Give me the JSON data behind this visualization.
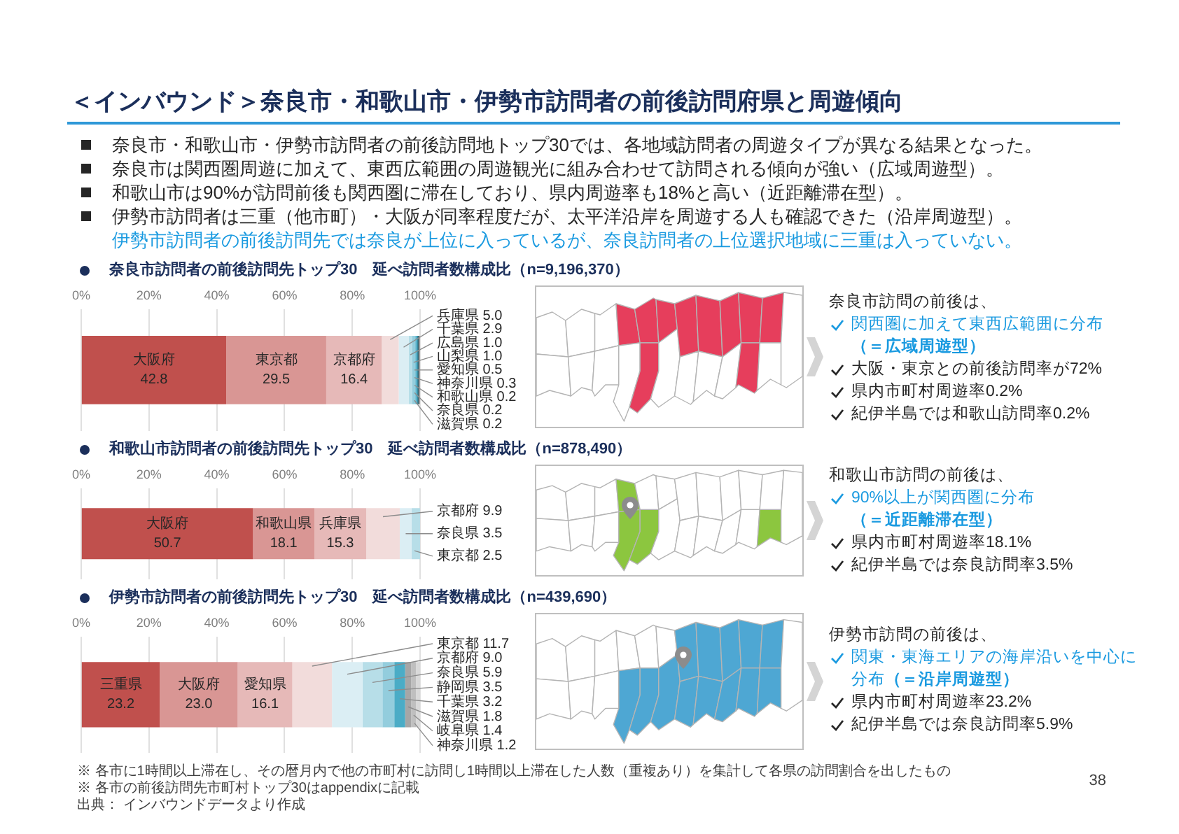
{
  "chart_data": [
    {
      "type": "other",
      "title": "＜インバウンド＞奈良市・和歌山市・伊勢市訪問者の前後訪問府県と周遊傾向",
      "annotations": [
        "奈良市・和歌山市・伊勢市訪問者の前後訪問地トップ30では、各地域訪問者の周遊タイプが異なる結果となった。",
        "奈良市は関西圏周遊に加えて、東西広範囲の周遊観光に組み合わせて訪問される傾向が強い（広域周遊型）。",
        "和歌山市は90%が訪問前後も関西圏に滞在しており、県内周遊率も18%と高い（近距離滞在型）。",
        "伊勢市訪問者は三重（他市町）・大阪が同率程度だが、太平洋沿岸を周遊する人も確認できた（沿岸周遊型）。",
        "伊勢市訪問者の前後訪問先では奈良が上位に入っているが、奈良訪問者の上位選択地域に三重は入っていない。"
      ]
    },
    {
      "type": "bar",
      "orientation": "horizontal",
      "stacked": true,
      "title": "奈良市訪問者の前後訪問先トップ30　延べ訪問者数構成比（n=9,196,370）",
      "categories": [
        null
      ],
      "series": [
        {
          "name": "大阪府",
          "color": "#c0504d",
          "values": [
            42.8
          ],
          "value_labels": [
            "42.8"
          ]
        },
        {
          "name": "東京都",
          "color": "#d99694",
          "values": [
            29.5
          ],
          "value_labels": [
            "29.5"
          ]
        },
        {
          "name": "京都府",
          "color": "#e6b9b8",
          "values": [
            16.4
          ],
          "value_labels": [
            "16.4"
          ]
        },
        {
          "name": "兵庫県",
          "color": "#f2dcdb",
          "values": [
            5.0
          ],
          "value_labels": [
            "5.0"
          ]
        },
        {
          "name": "千葉県",
          "color": "#dbeef4",
          "values": [
            2.9
          ],
          "value_labels": [
            "2.9"
          ]
        },
        {
          "name": "広島県",
          "color": "#b7dee8",
          "values": [
            1.0
          ],
          "value_labels": [
            "1.0"
          ]
        },
        {
          "name": "山梨県",
          "color": "#93cddd",
          "values": [
            1.0
          ],
          "value_labels": [
            "1.0"
          ]
        },
        {
          "name": "愛知県",
          "color": "#4bacc6",
          "values": [
            0.5
          ],
          "value_labels": [
            "0.5"
          ]
        },
        {
          "name": "神奈川県",
          "color": "#31859c",
          "values": [
            0.3
          ],
          "value_labels": [
            "0.3"
          ]
        },
        {
          "name": "和歌山県",
          "color": "#215968",
          "values": [
            0.2
          ],
          "value_labels": [
            "0.2"
          ]
        },
        {
          "name": "奈良県",
          "color": "#7f7f7f",
          "values": [
            0.2
          ],
          "value_labels": [
            "0.2"
          ]
        },
        {
          "name": "滋賀県",
          "color": "#a6a6a6",
          "values": [
            0.2
          ],
          "value_labels": [
            "0.2"
          ]
        }
      ],
      "xlim": [
        0,
        100
      ],
      "xticks": [
        {
          "value": 0,
          "label": "0%"
        },
        {
          "value": 20,
          "label": "20%"
        },
        {
          "value": 40,
          "label": "40%"
        },
        {
          "value": 60,
          "label": "60%"
        },
        {
          "value": 80,
          "label": "80%"
        },
        {
          "value": 100,
          "label": "100%"
        }
      ],
      "grid": "x",
      "annotations": [
        "奈良市訪問の前後は、",
        "関西圏に加えて東西広範囲に分布（＝広域周遊型）",
        "大阪・東京との前後訪問率が72%",
        "県内市町村周遊率0.2%",
        "紀伊半島では和歌山訪問率0.2%"
      ]
    },
    {
      "type": "bar",
      "orientation": "horizontal",
      "stacked": true,
      "title": "和歌山市訪問者の前後訪問先トップ30　延べ訪問者数構成比（n=878,490）",
      "categories": [
        null
      ],
      "series": [
        {
          "name": "大阪府",
          "color": "#c0504d",
          "values": [
            50.7
          ],
          "value_labels": [
            "50.7"
          ]
        },
        {
          "name": "和歌山県",
          "color": "#d99694",
          "values": [
            18.1
          ],
          "value_labels": [
            "18.1"
          ]
        },
        {
          "name": "兵庫県",
          "color": "#e6b9b8",
          "values": [
            15.3
          ],
          "value_labels": [
            "15.3"
          ]
        },
        {
          "name": "京都府",
          "color": "#f2dcdb",
          "values": [
            9.9
          ],
          "value_labels": [
            "9.9"
          ]
        },
        {
          "name": "奈良県",
          "color": "#dbeef4",
          "values": [
            3.5
          ],
          "value_labels": [
            "3.5"
          ]
        },
        {
          "name": "東京都",
          "color": "#b7dee8",
          "values": [
            2.5
          ],
          "value_labels": [
            "2.5"
          ]
        }
      ],
      "xlim": [
        0,
        100
      ],
      "xticks": [
        {
          "value": 0,
          "label": "0%"
        },
        {
          "value": 20,
          "label": "20%"
        },
        {
          "value": 40,
          "label": "40%"
        },
        {
          "value": 60,
          "label": "60%"
        },
        {
          "value": 80,
          "label": "80%"
        },
        {
          "value": 100,
          "label": "100%"
        }
      ],
      "grid": "x",
      "annotations": [
        "和歌山市訪問の前後は、",
        "90%以上が関西圏に分布（＝近距離滞在型）",
        "県内市町村周遊率18.1%",
        "紀伊半島では奈良訪問率3.5%"
      ]
    },
    {
      "type": "bar",
      "orientation": "horizontal",
      "stacked": true,
      "title": "伊勢市訪問者の前後訪問先トップ30　延べ訪問者数構成比（n=439,690）",
      "categories": [
        null
      ],
      "series": [
        {
          "name": "三重県",
          "color": "#c0504d",
          "values": [
            23.2
          ],
          "value_labels": [
            "23.2"
          ]
        },
        {
          "name": "大阪府",
          "color": "#d99694",
          "values": [
            23.0
          ],
          "value_labels": [
            "23.0"
          ]
        },
        {
          "name": "愛知県",
          "color": "#e6b9b8",
          "values": [
            16.1
          ],
          "value_labels": [
            "16.1"
          ]
        },
        {
          "name": "東京都",
          "color": "#f2dcdb",
          "values": [
            11.7
          ],
          "value_labels": [
            "11.7"
          ]
        },
        {
          "name": "京都府",
          "color": "#dbeef4",
          "values": [
            9.0
          ],
          "value_labels": [
            "9.0"
          ]
        },
        {
          "name": "奈良県",
          "color": "#b7dee8",
          "values": [
            5.9
          ],
          "value_labels": [
            "5.9"
          ]
        },
        {
          "name": "静岡県",
          "color": "#93cddd",
          "values": [
            3.5
          ],
          "value_labels": [
            "3.5"
          ]
        },
        {
          "name": "千葉県",
          "color": "#4bacc6",
          "values": [
            3.2
          ],
          "value_labels": [
            "3.2"
          ]
        },
        {
          "name": "滋賀県",
          "color": "#a6a6a6",
          "values": [
            1.8
          ],
          "value_labels": [
            "1.8"
          ]
        },
        {
          "name": "岐阜県",
          "color": "#bfbfbf",
          "values": [
            1.4
          ],
          "value_labels": [
            "1.4"
          ]
        },
        {
          "name": "神奈川県",
          "color": "#d9d9d9",
          "values": [
            1.2
          ],
          "value_labels": [
            "1.2"
          ]
        }
      ],
      "xlim": [
        0,
        100
      ],
      "xticks": [
        {
          "value": 0,
          "label": "0%"
        },
        {
          "value": 20,
          "label": "20%"
        },
        {
          "value": 40,
          "label": "40%"
        },
        {
          "value": 60,
          "label": "60%"
        },
        {
          "value": 80,
          "label": "80%"
        },
        {
          "value": 100,
          "label": "100%"
        }
      ],
      "grid": "x",
      "annotations": [
        "伊勢市訪問の前後は、",
        "関東・東海エリアの海岸沿いを中心に分布（＝沿岸周遊型）",
        "県内市町村周遊率23.2%",
        "紀伊半島では奈良訪問率5.9%"
      ]
    },
    {
      "type": "other",
      "annotations": [
        "※ 各市に1時間以上滞在し、その暦月内で他の市町村に訪問し1時間以上滞在した人数（重複あり）を集計して各県の訪問割合を出したもの",
        "※ 各市の前後訪問先市町村トップ30はappendixに記載",
        "出典： インバウンドデータより作成",
        "38"
      ]
    }
  ]
}
